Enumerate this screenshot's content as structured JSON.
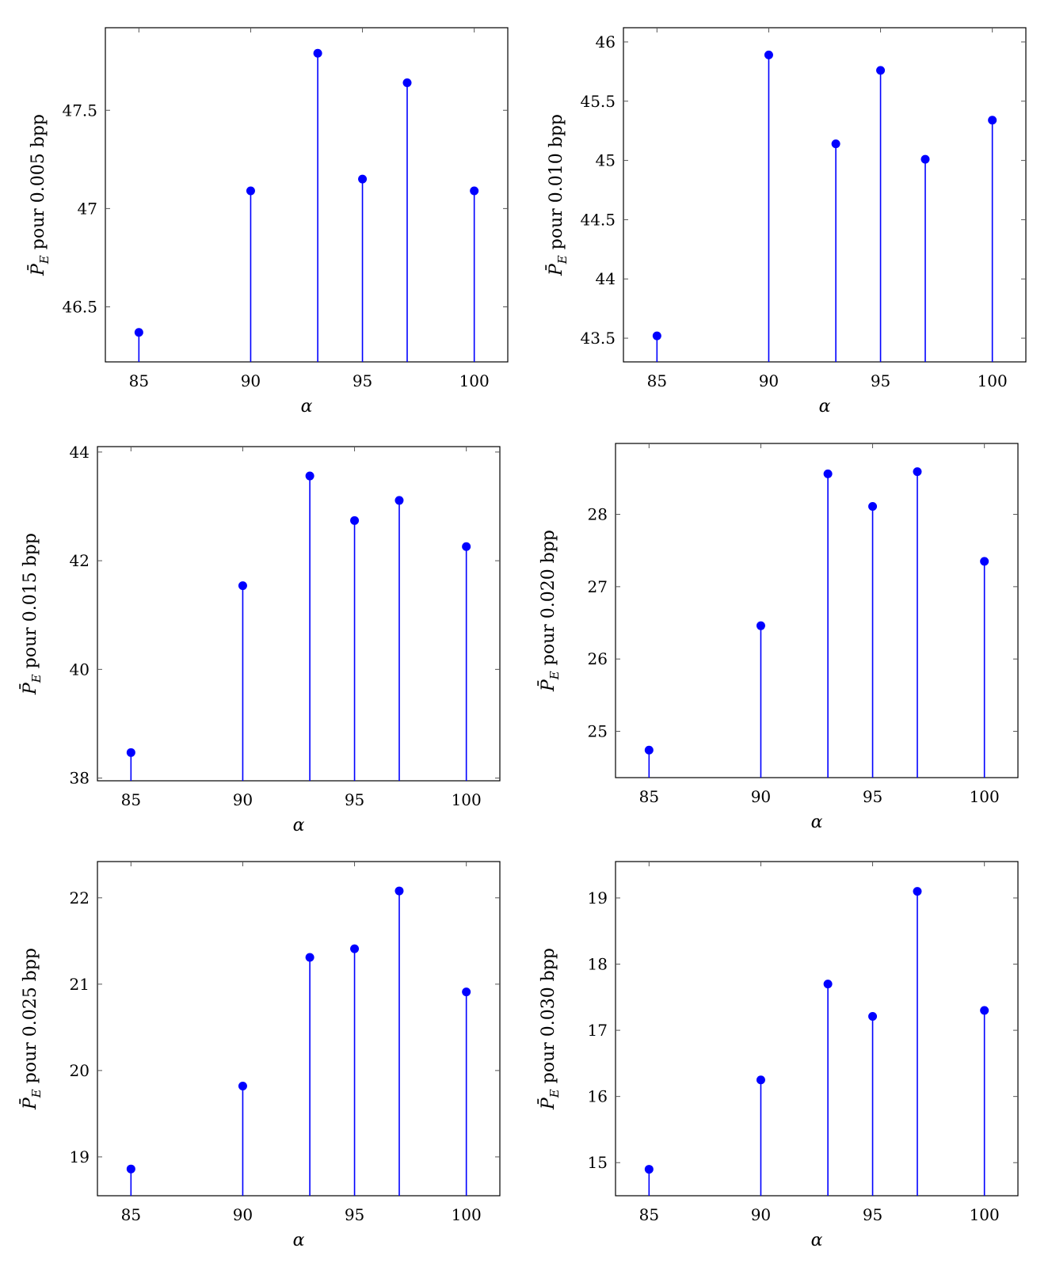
{
  "chart_data": [
    {
      "type": "stem",
      "xlabel": "α",
      "ylabel": "P̄E pour 0.005 bpp",
      "ylabel_symbol": "P̄",
      "ylabel_subscript": "E",
      "ylabel_rest": " pour 0.005 bpp",
      "x": [
        85,
        90,
        93,
        95,
        97,
        100
      ],
      "y": [
        46.37,
        47.09,
        47.79,
        47.15,
        47.64,
        47.09
      ],
      "xlim": [
        83.5,
        101.5
      ],
      "ylim": [
        46.22,
        47.92
      ],
      "xticks": [
        85,
        90,
        95,
        100
      ],
      "yticks": [
        46.5,
        47,
        47.5
      ],
      "color": "#0000ff"
    },
    {
      "type": "stem",
      "xlabel": "α",
      "ylabel": "P̄E pour 0.010 bpp",
      "ylabel_symbol": "P̄",
      "ylabel_subscript": "E",
      "ylabel_rest": " pour 0.010 bpp",
      "x": [
        85,
        90,
        93,
        95,
        97,
        100
      ],
      "y": [
        43.52,
        45.89,
        45.14,
        45.76,
        45.01,
        45.34
      ],
      "xlim": [
        83.5,
        101.5
      ],
      "ylim": [
        43.3,
        46.12
      ],
      "xticks": [
        85,
        90,
        95,
        100
      ],
      "yticks": [
        43.5,
        44,
        44.5,
        45,
        45.5,
        46
      ],
      "color": "#0000ff"
    },
    {
      "type": "stem",
      "xlabel": "α",
      "ylabel": "P̄E pour 0.015 bpp",
      "ylabel_symbol": "P̄",
      "ylabel_subscript": "E",
      "ylabel_rest": " pour 0.015 bpp",
      "x": [
        85,
        90,
        93,
        95,
        97,
        100
      ],
      "y": [
        38.47,
        41.54,
        43.56,
        42.74,
        43.11,
        42.26
      ],
      "xlim": [
        83.5,
        101.5
      ],
      "ylim": [
        37.95,
        44.1
      ],
      "xticks": [
        85,
        90,
        95,
        100
      ],
      "yticks": [
        38,
        40,
        42,
        44
      ],
      "color": "#0000ff"
    },
    {
      "type": "stem",
      "xlabel": "α",
      "ylabel": "P̄E pour 0.020 bpp",
      "ylabel_symbol": "P̄",
      "ylabel_subscript": "E",
      "ylabel_rest": " pour 0.020 bpp",
      "x": [
        85,
        90,
        93,
        95,
        97,
        100
      ],
      "y": [
        24.74,
        26.46,
        28.56,
        28.11,
        28.59,
        27.35
      ],
      "xlim": [
        83.5,
        101.5
      ],
      "ylim": [
        24.36,
        28.98
      ],
      "xticks": [
        85,
        90,
        95,
        100
      ],
      "yticks": [
        25,
        26,
        27,
        28
      ],
      "color": "#0000ff"
    },
    {
      "type": "stem",
      "xlabel": "α",
      "ylabel": "P̄E pour 0.025 bpp",
      "ylabel_symbol": "P̄",
      "ylabel_subscript": "E",
      "ylabel_rest": " pour 0.025 bpp",
      "x": [
        85,
        90,
        93,
        95,
        97,
        100
      ],
      "y": [
        18.86,
        19.82,
        21.31,
        21.41,
        22.08,
        20.91
      ],
      "xlim": [
        83.5,
        101.5
      ],
      "ylim": [
        18.55,
        22.42
      ],
      "xticks": [
        85,
        90,
        95,
        100
      ],
      "yticks": [
        19,
        20,
        21,
        22
      ],
      "color": "#0000ff"
    },
    {
      "type": "stem",
      "xlabel": "α",
      "ylabel": "P̄E pour 0.030 bpp",
      "ylabel_symbol": "P̄",
      "ylabel_subscript": "E",
      "ylabel_rest": " pour 0.030 bpp",
      "x": [
        85,
        90,
        93,
        95,
        97,
        100
      ],
      "y": [
        14.9,
        16.25,
        17.7,
        17.21,
        19.1,
        17.3
      ],
      "xlim": [
        83.5,
        101.5
      ],
      "ylim": [
        14.5,
        19.55
      ],
      "xticks": [
        85,
        90,
        95,
        100
      ],
      "yticks": [
        15,
        16,
        17,
        18,
        19
      ],
      "color": "#0000ff"
    }
  ]
}
